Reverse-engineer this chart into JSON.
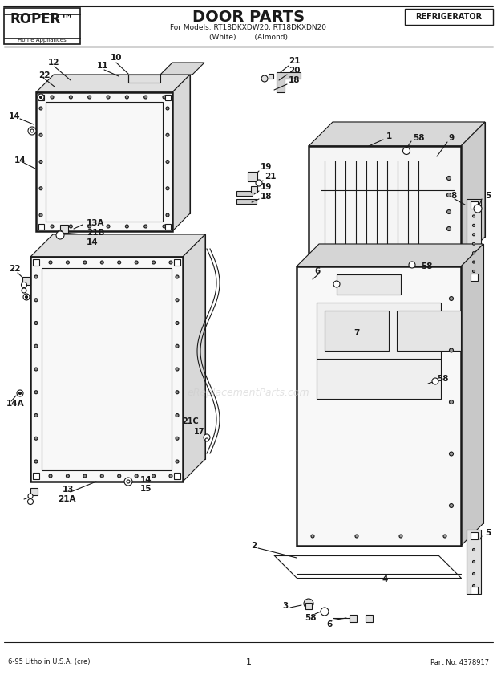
{
  "title": "DOOR PARTS",
  "subtitle1": "For Models: RT18DKXDW20, RT18DKXDN20",
  "subtitle2": "(White)      (Almond)",
  "brand": "ROPER",
  "brand_tm": "™",
  "brand_sub": "Home Appliances",
  "category": "REFRIGERATOR",
  "footer_left": "6-95 Litho in U.S.A. (cre)",
  "footer_center": "1",
  "footer_right": "Part No. 4378917",
  "bg_color": "#ffffff",
  "lc": "#1a1a1a",
  "watermark": "eReplacementParts.com"
}
